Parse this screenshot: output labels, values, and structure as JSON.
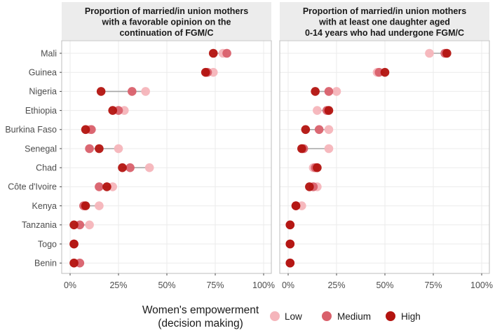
{
  "colors": {
    "low": "#f5b5bb",
    "medium": "#d9606b",
    "high": "#b3130f",
    "connector": "#a6a6a6",
    "strip_bg": "#ececec",
    "panel_border": "#bdbdbd",
    "grid": "#ebebeb"
  },
  "legend": {
    "title_line1": "Women's empowerment",
    "title_line2": "(decision making)",
    "items": [
      {
        "key": "low",
        "label": "Low"
      },
      {
        "key": "medium",
        "label": "Medium"
      },
      {
        "key": "high",
        "label": "High"
      }
    ]
  },
  "chart_data": [
    {
      "type": "dot-range",
      "title_lines": [
        "Proportion of married/in union mothers",
        "with a favorable opinion on the",
        "continuation of FGM/C"
      ],
      "xlim": [
        0,
        100
      ],
      "xticks": [
        0,
        25,
        50,
        75,
        100
      ],
      "xtick_labels": [
        "0%",
        "25%",
        "50%",
        "75%",
        "100%"
      ],
      "categories": [
        "Mali",
        "Guinea",
        "Nigeria",
        "Ethiopia",
        "Burkina Faso",
        "Senegal",
        "Chad",
        "Côte d'Ivoire",
        "Kenya",
        "Tanzania",
        "Togo",
        "Benin"
      ],
      "series": [
        {
          "key": "low",
          "name": "Low",
          "values": [
            79,
            74,
            39,
            28,
            10,
            25,
            41,
            22,
            15,
            10,
            2,
            2
          ]
        },
        {
          "key": "medium",
          "name": "Medium",
          "values": [
            81,
            71,
            32,
            25,
            11,
            10,
            31,
            15,
            7,
            5,
            2,
            5
          ]
        },
        {
          "key": "high",
          "name": "High",
          "values": [
            74,
            70,
            16,
            22,
            8,
            15,
            27,
            19,
            8,
            2,
            2,
            2
          ]
        }
      ]
    },
    {
      "type": "dot-range",
      "title_lines": [
        "Proportion of married/in union mothers",
        "with at least one daughter aged",
        "0-14 years who had undergone FGM/C"
      ],
      "xlim": [
        0,
        100
      ],
      "xticks": [
        0,
        25,
        50,
        75,
        100
      ],
      "xtick_labels": [
        "0%",
        "25%",
        "50%",
        "75%",
        "100%"
      ],
      "categories": [
        "Mali",
        "Guinea",
        "Nigeria",
        "Ethiopia",
        "Burkina Faso",
        "Senegal",
        "Chad",
        "Côte d'Ivoire",
        "Kenya",
        "Tanzania",
        "Togo",
        "Benin"
      ],
      "series": [
        {
          "key": "low",
          "name": "Low",
          "values": [
            73,
            46,
            25,
            15,
            21,
            21,
            13,
            15,
            7,
            1,
            1,
            1
          ]
        },
        {
          "key": "medium",
          "name": "Medium",
          "values": [
            81,
            47,
            21,
            20,
            16,
            8,
            14,
            13,
            4,
            1,
            1,
            1
          ]
        },
        {
          "key": "high",
          "name": "High",
          "values": [
            82,
            50,
            14,
            21,
            9,
            7,
            15,
            11,
            4,
            1,
            1,
            1
          ]
        }
      ]
    }
  ]
}
